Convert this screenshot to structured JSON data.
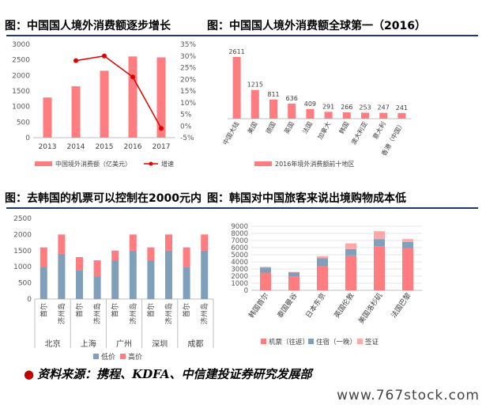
{
  "panels": {
    "p1_title": "图：中国国人境外消费额逐步增长",
    "p2_title": "图：中国国人境外消费额全球第一（2016）",
    "p3_title": "图：去韩国的机票可以控制在2000元内",
    "p4_title": "图：韩国对中国旅客来说出境购物成本低"
  },
  "source": "资料来源：携程、KDFA、中信建投证券研究发展部",
  "watermark": "www.767stock.com",
  "colors": {
    "pink": "#ff7c80",
    "red": "#e00000",
    "blue": "#7f9fba",
    "lightpink": "#ffa7a9",
    "navy": "#1f3864"
  },
  "chart_data": [
    {
      "type": "bar",
      "categories": [
        "2013",
        "2014",
        "2015",
        "2016",
        "2017"
      ],
      "series": [
        {
          "name": "中国境外消费额（亿美元）",
          "values": [
            1290,
            1650,
            2150,
            2610,
            2580
          ]
        },
        {
          "name": "增速",
          "values": [
            null,
            28,
            30,
            21,
            -1
          ],
          "type": "line",
          "axis": "right"
        }
      ],
      "ylim": [
        0,
        3000
      ],
      "yticks": [
        "0",
        "500",
        "1000",
        "1500",
        "2000",
        "2500",
        "3000"
      ],
      "y2lim": [
        -5,
        35
      ],
      "y2ticks": [
        "-5%",
        "0%",
        "5%",
        "10%",
        "15%",
        "20%",
        "25%",
        "30%",
        "35%"
      ],
      "legend": "bottom",
      "grid": false
    },
    {
      "type": "bar",
      "categories": [
        "中国大陆",
        "美国",
        "德国",
        "英国",
        "法国",
        "加拿大",
        "韩国",
        "澳大利亚",
        "意大利",
        "香港（中国）"
      ],
      "series": [
        {
          "name": "2016年境外消费额前十地区",
          "values": [
            2611,
            1215,
            811,
            636,
            409,
            291,
            266,
            253,
            247,
            241
          ]
        }
      ],
      "data_labels": [
        "2611",
        "1215",
        "811",
        "636",
        "409",
        "291",
        "266",
        "253",
        "247",
        "241"
      ],
      "legend": "bottom",
      "grid": false
    },
    {
      "type": "bar",
      "stacked": true,
      "categories": [
        "首尔",
        "济州岛",
        "首尔",
        "济州岛",
        "首尔",
        "济州岛",
        "首尔",
        "济州岛",
        "首尔",
        "济州岛"
      ],
      "groups": [
        "北京",
        "上海",
        "广州",
        "深圳",
        "成都"
      ],
      "series": [
        {
          "name": "低价",
          "values": [
            1000,
            1400,
            900,
            700,
            1200,
            1500,
            1200,
            1500,
            1000,
            1500
          ]
        },
        {
          "name": "高价",
          "values": [
            600,
            600,
            400,
            500,
            300,
            500,
            400,
            500,
            600,
            500
          ]
        }
      ],
      "ylim": [
        0,
        2500
      ],
      "yticks": [
        "0",
        "500",
        "1000",
        "1500",
        "2000",
        "2500"
      ],
      "legend": "bottom",
      "grid": false
    },
    {
      "type": "bar",
      "stacked": true,
      "categories": [
        "韩国首尔",
        "泰国曼谷",
        "日本东京",
        "英国伦敦",
        "美国洛杉矶",
        "法国巴黎"
      ],
      "series": [
        {
          "name": "机票（往返）",
          "values": [
            2500,
            2000,
            3400,
            4900,
            6200,
            5900
          ]
        },
        {
          "name": "住宿（一晚）",
          "values": [
            700,
            500,
            1100,
            900,
            1000,
            900
          ]
        },
        {
          "name": "签证",
          "values": [
            100,
            100,
            300,
            800,
            1100,
            400
          ]
        }
      ],
      "ylim": [
        0,
        9000
      ],
      "yticks": [
        "0",
        "1000",
        "2000",
        "3000",
        "4000",
        "5000",
        "6000",
        "7000",
        "8000",
        "9000"
      ],
      "legend": "bottom",
      "grid": true
    }
  ]
}
